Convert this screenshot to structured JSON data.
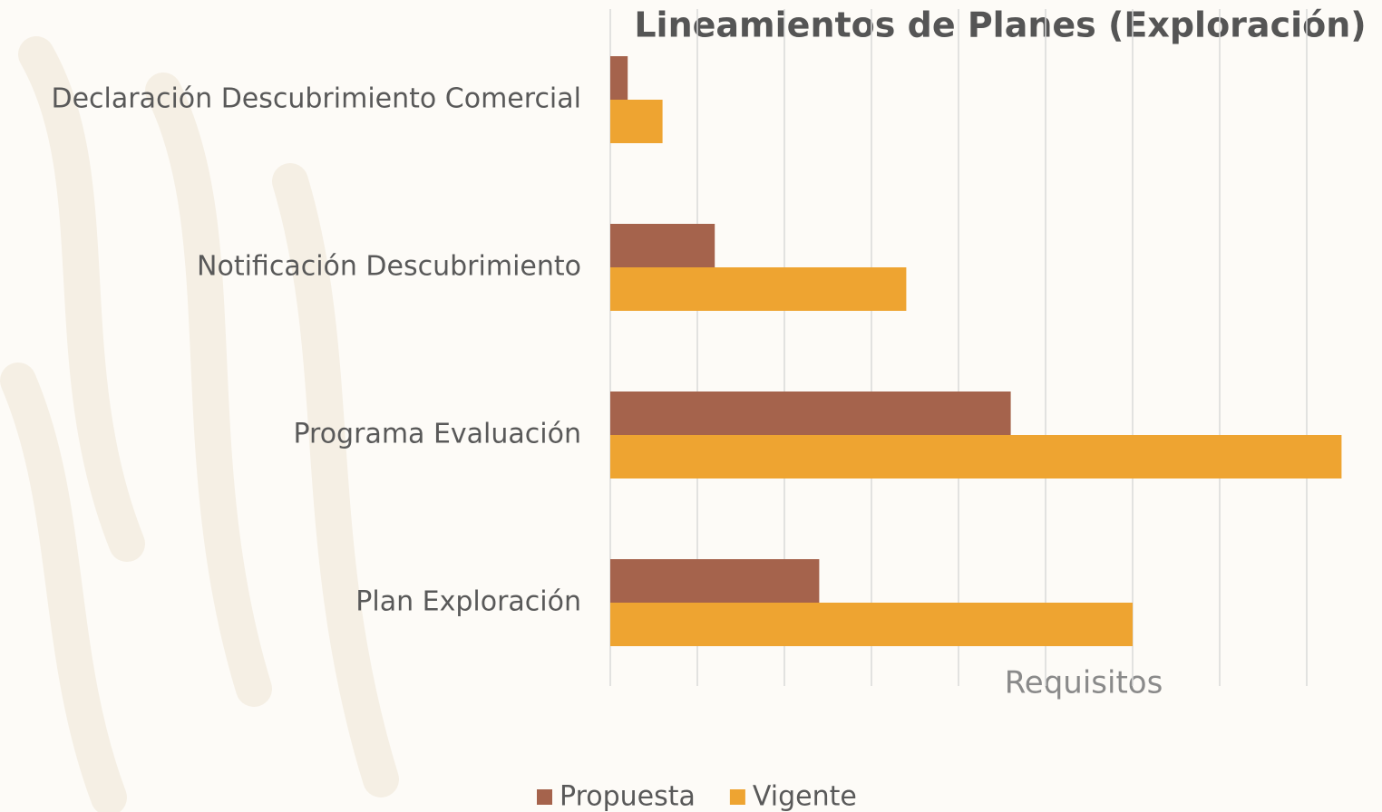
{
  "chart_data": {
    "type": "bar",
    "orientation": "horizontal",
    "title": "Lineamientos de Planes (Exploración)",
    "x_label": "Requisitos",
    "categories": [
      "Declaración Descubrimiento Comercial",
      "Notificación Descubrimiento",
      "Programa Evaluación",
      "Plan Exploración"
    ],
    "series": [
      {
        "name": "Propuesta",
        "color": "#a5634c",
        "values": [
          2,
          12,
          46,
          24
        ]
      },
      {
        "name": "Vigente",
        "color": "#eea431",
        "values": [
          6,
          34,
          84,
          60
        ]
      }
    ],
    "xlim": [
      0,
      86
    ],
    "xticks": [
      0,
      10,
      20,
      30,
      40,
      50,
      60,
      70,
      80
    ],
    "grid": true,
    "legend": "bottom"
  }
}
